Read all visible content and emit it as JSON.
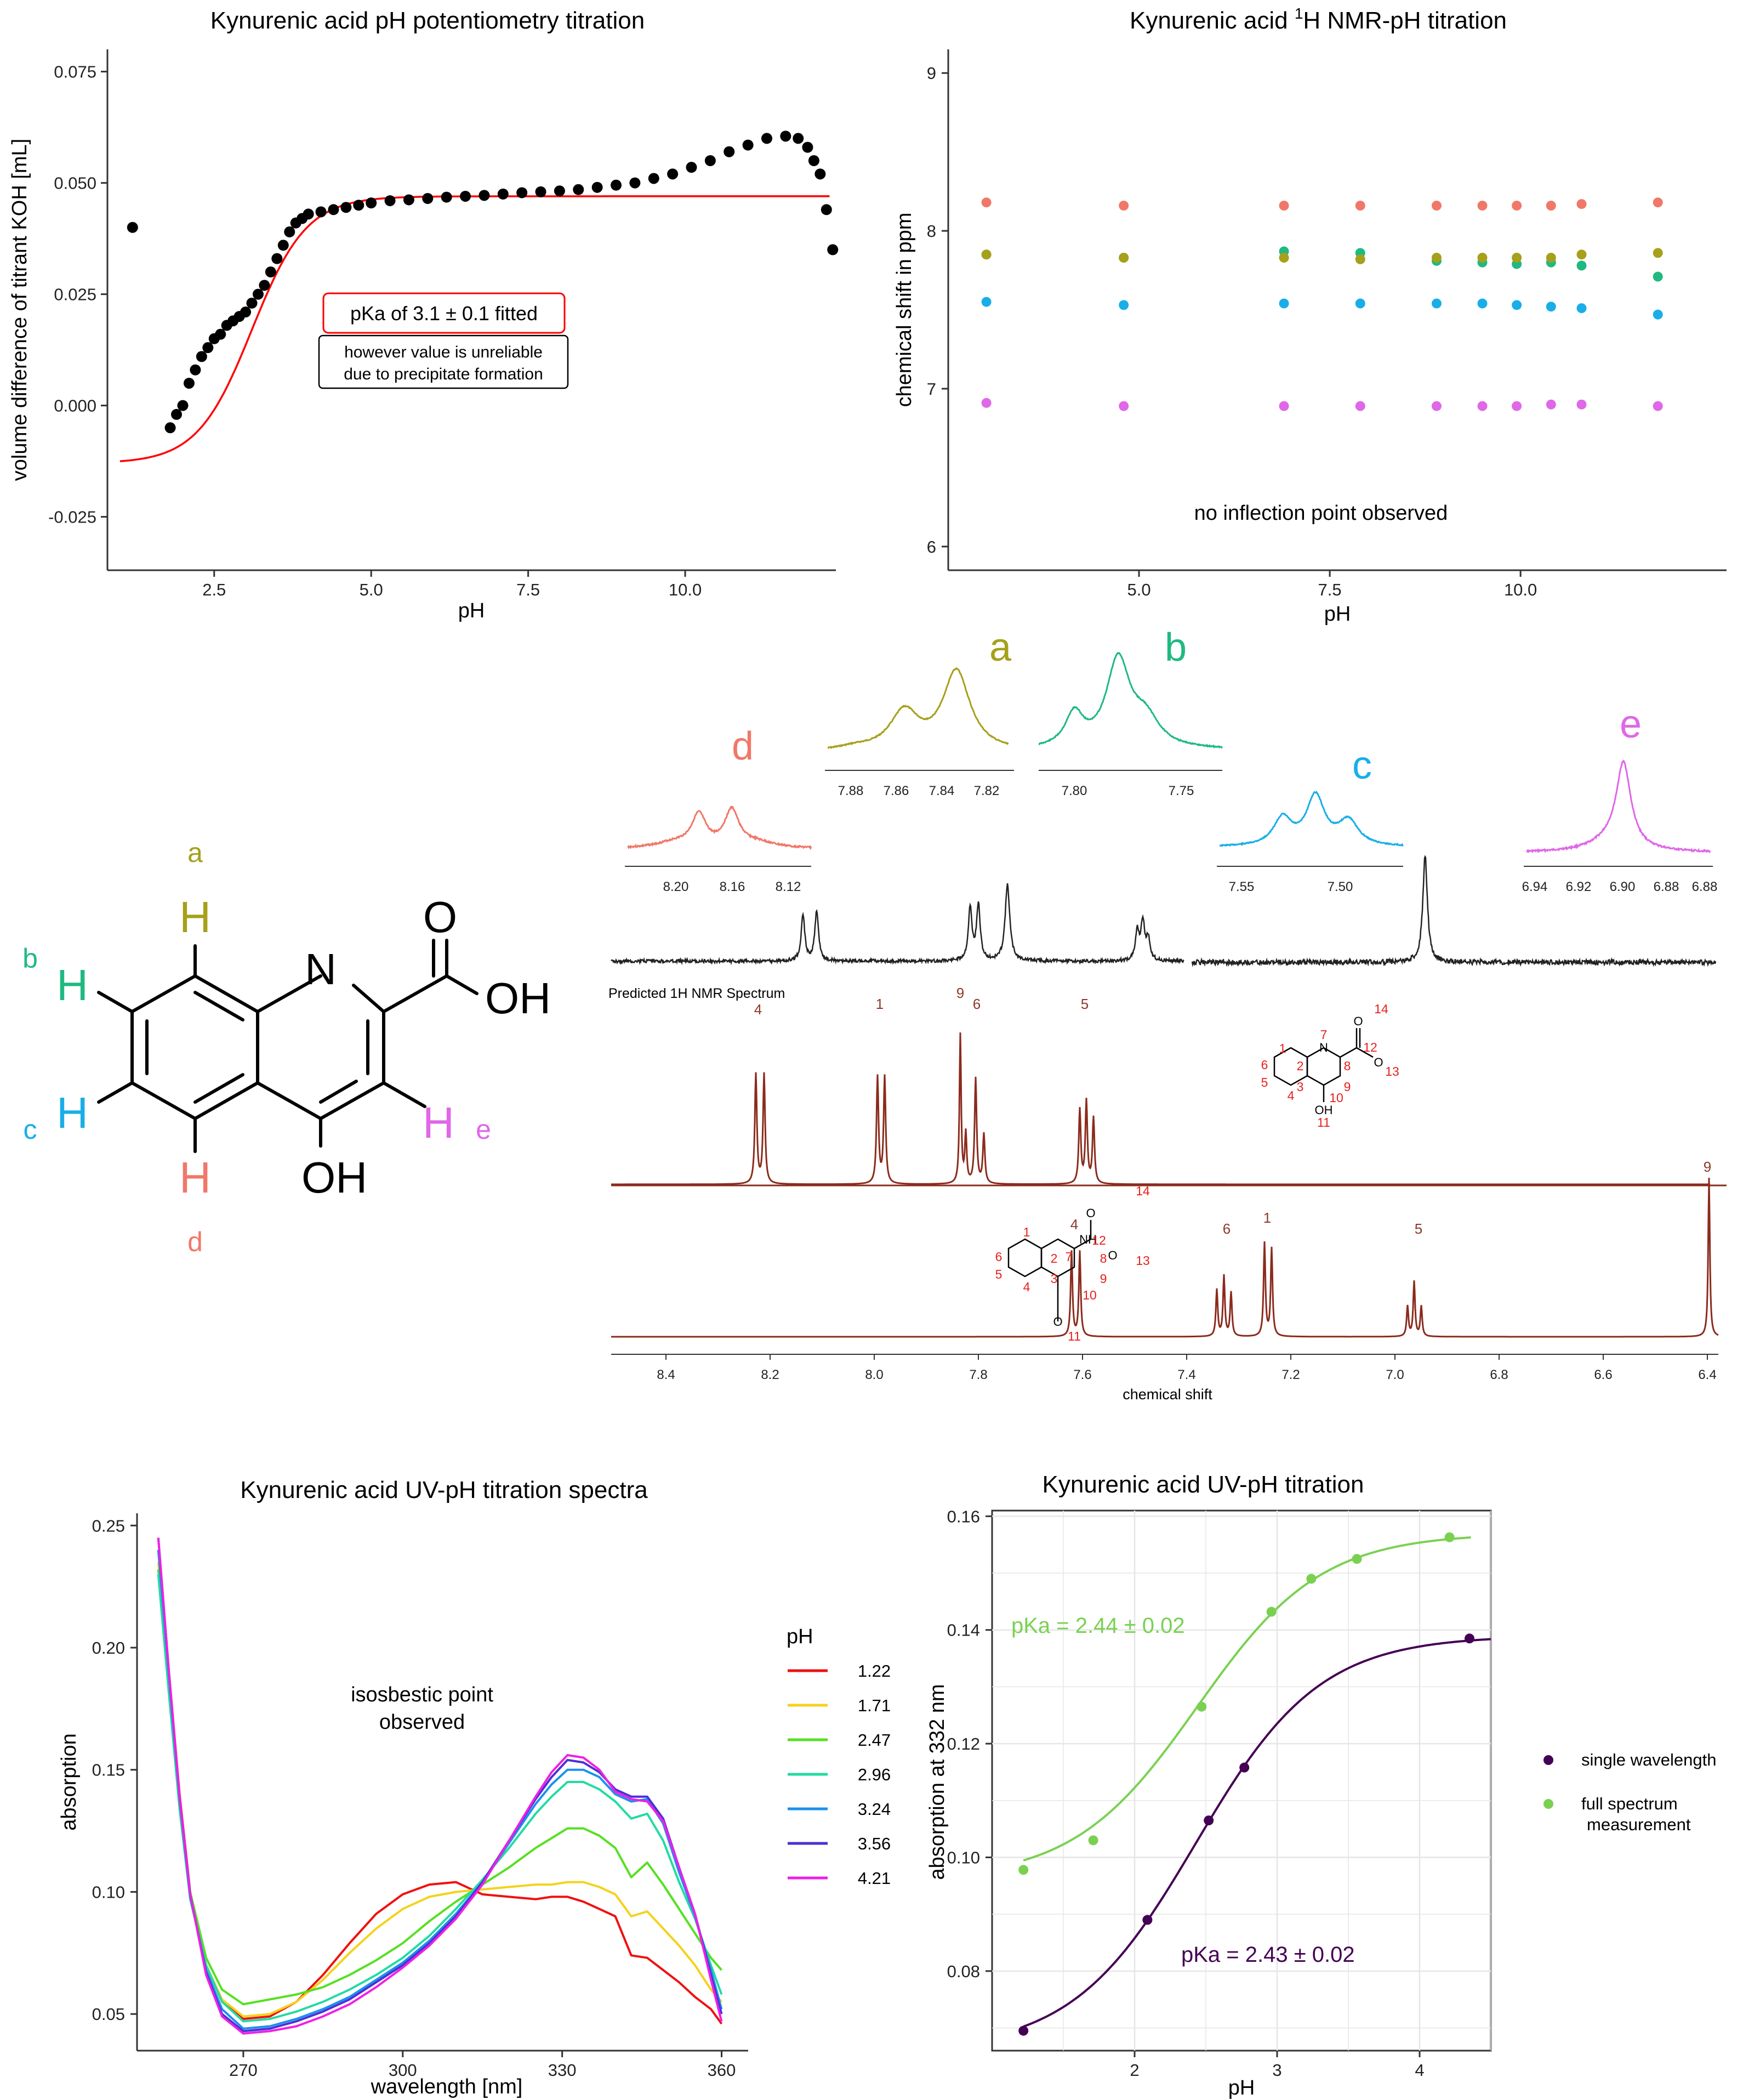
{
  "colors": {
    "a": "#a6a01a",
    "b": "#1fb981",
    "c": "#19aee8",
    "d": "#f07869",
    "e": "#e067e8",
    "fit_red": "#ff0000",
    "single": "#440154",
    "full": "#7ad151",
    "brown": "#8b2b1d"
  },
  "panels": {
    "potentiometry": {
      "chart_data": {
        "type": "scatter",
        "title": "Kynurenic acid pH potentiometry titration",
        "xlabel": "pH",
        "ylabel": "volume difference of titrant KOH [mL]",
        "xlim": [
          0.8,
          12.4
        ],
        "ylim": [
          -0.037,
          0.08
        ],
        "x_ticks": [
          "2.5",
          "5.0",
          "7.5",
          "10.0"
        ],
        "y_ticks": [
          "-0.025",
          "0.000",
          "0.025",
          "0.050",
          "0.075"
        ],
        "points": [
          [
            1.2,
            0.04
          ],
          [
            1.8,
            -0.005
          ],
          [
            1.9,
            -0.002
          ],
          [
            2.0,
            0.0
          ],
          [
            2.1,
            0.005
          ],
          [
            2.2,
            0.008
          ],
          [
            2.3,
            0.011
          ],
          [
            2.4,
            0.013
          ],
          [
            2.5,
            0.015
          ],
          [
            2.6,
            0.016
          ],
          [
            2.7,
            0.018
          ],
          [
            2.8,
            0.019
          ],
          [
            2.9,
            0.02
          ],
          [
            3.0,
            0.021
          ],
          [
            3.1,
            0.023
          ],
          [
            3.2,
            0.025
          ],
          [
            3.3,
            0.027
          ],
          [
            3.4,
            0.03
          ],
          [
            3.5,
            0.033
          ],
          [
            3.6,
            0.036
          ],
          [
            3.7,
            0.039
          ],
          [
            3.8,
            0.041
          ],
          [
            3.9,
            0.042
          ],
          [
            4.0,
            0.043
          ],
          [
            4.2,
            0.0435
          ],
          [
            4.4,
            0.044
          ],
          [
            4.6,
            0.0445
          ],
          [
            4.8,
            0.045
          ],
          [
            5.0,
            0.0455
          ],
          [
            5.3,
            0.046
          ],
          [
            5.6,
            0.0462
          ],
          [
            5.9,
            0.0465
          ],
          [
            6.2,
            0.0468
          ],
          [
            6.5,
            0.047
          ],
          [
            6.8,
            0.0472
          ],
          [
            7.1,
            0.0475
          ],
          [
            7.4,
            0.0478
          ],
          [
            7.7,
            0.048
          ],
          [
            8.0,
            0.0482
          ],
          [
            8.3,
            0.0485
          ],
          [
            8.6,
            0.049
          ],
          [
            8.9,
            0.0495
          ],
          [
            9.2,
            0.05
          ],
          [
            9.5,
            0.051
          ],
          [
            9.8,
            0.052
          ],
          [
            10.1,
            0.0535
          ],
          [
            10.4,
            0.055
          ],
          [
            10.7,
            0.057
          ],
          [
            11.0,
            0.0585
          ],
          [
            11.3,
            0.06
          ],
          [
            11.6,
            0.0605
          ],
          [
            11.8,
            0.06
          ],
          [
            11.95,
            0.058
          ],
          [
            12.05,
            0.055
          ],
          [
            12.15,
            0.052
          ],
          [
            12.25,
            0.044
          ],
          [
            12.35,
            0.035
          ]
        ],
        "fit": {
          "model": "sigmoid",
          "pKa": 3.1,
          "bottom": -0.013,
          "top": 0.047,
          "x_range": [
            1.0,
            12.3
          ]
        },
        "annotation_main": "pKa of 3.1 ± 0.1 fitted",
        "annotation_sub1": "however value is unreliable",
        "annotation_sub2": "due to precipitate formation"
      }
    },
    "nmr_titration": {
      "chart_data": {
        "type": "scatter",
        "title_prefix": "Kynurenic acid ",
        "title_sup": "1",
        "title_suffix": "H NMR-pH titration",
        "xlabel": "pH",
        "ylabel": "chemical shift in ppm",
        "xlim": [
          2.5,
          12.7
        ],
        "ylim": [
          5.85,
          9.15
        ],
        "x_ticks": [
          "5.0",
          "7.5",
          "10.0"
        ],
        "y_ticks": [
          "6",
          "7",
          "8",
          "9"
        ],
        "x": [
          3.0,
          4.8,
          6.9,
          7.9,
          8.9,
          9.5,
          9.95,
          10.4,
          10.8,
          11.8
        ],
        "series": [
          {
            "name": "d",
            "values": [
              8.18,
              8.16,
              8.16,
              8.16,
              8.16,
              8.16,
              8.16,
              8.16,
              8.17,
              8.18
            ]
          },
          {
            "name": "b",
            "values": [
              7.85,
              7.83,
              7.87,
              7.86,
              7.81,
              7.8,
              7.79,
              7.8,
              7.78,
              7.71
            ]
          },
          {
            "name": "a",
            "values": [
              7.85,
              7.83,
              7.83,
              7.82,
              7.83,
              7.83,
              7.83,
              7.83,
              7.85,
              7.86
            ]
          },
          {
            "name": "c",
            "values": [
              7.55,
              7.53,
              7.54,
              7.54,
              7.54,
              7.54,
              7.53,
              7.52,
              7.51,
              7.47
            ]
          },
          {
            "name": "e",
            "values": [
              6.91,
              6.89,
              6.89,
              6.89,
              6.89,
              6.89,
              6.89,
              6.9,
              6.9,
              6.89
            ]
          }
        ],
        "annotation": "no inflection point observed"
      }
    },
    "structure": {
      "labels": {
        "a": "a",
        "b": "b",
        "c": "c",
        "d": "d",
        "e": "e"
      },
      "atoms": {
        "H": "H",
        "N": "N",
        "O": "O",
        "OH": "OH"
      }
    },
    "spectrum": {
      "peaks": {
        "d": {
          "label": "d",
          "ticks": [
            "8.20",
            "8.16",
            "8.12"
          ]
        },
        "a": {
          "label": "a",
          "ticks": [
            "7.88",
            "7.86",
            "7.84",
            "7.82"
          ]
        },
        "b": {
          "label": "b",
          "ticks": [
            "7.80",
            "7.75"
          ]
        },
        "c": {
          "label": "c",
          "ticks": [
            "7.55",
            "7.50"
          ]
        },
        "e": {
          "label": "e",
          "ticks": [
            "6.94",
            "6.92",
            "6.90",
            "6.88"
          ]
        }
      },
      "predicted_label": "Predicted 1H NMR Spectrum",
      "predicted1_peak_labels": [
        "4",
        "1",
        "9",
        "6",
        "5",
        "9"
      ],
      "predicted2_peak_labels": [
        "4",
        "6",
        "1",
        "5"
      ],
      "x_ticks": [
        "8.4",
        "8.2",
        "8.0",
        "7.8",
        "7.6",
        "7.4",
        "7.2",
        "7.0",
        "6.8",
        "6.6",
        "6.4"
      ],
      "xlabel": "chemical shift",
      "struct1_numbers": [
        "1",
        "2",
        "3",
        "4",
        "5",
        "6",
        "7",
        "8",
        "9",
        "10",
        "11",
        "12",
        "13",
        "14"
      ],
      "struct1_atoms": {
        "N": "N",
        "O": "O",
        "OH": "OH",
        "Ominus": "O"
      },
      "struct2_atoms": {
        "NH": "NH",
        "O": "O"
      }
    },
    "uv_spectra": {
      "chart_data": {
        "type": "line",
        "title": "Kynurenic acid UV-pH titration spectra",
        "xlabel": "wavelength [nm]",
        "ylabel": "absorption",
        "xlim": [
          250,
          365
        ],
        "ylim": [
          0.035,
          0.255
        ],
        "x_ticks": [
          "270",
          "300",
          "330",
          "360"
        ],
        "y_ticks": [
          "0.05",
          "0.10",
          "0.15",
          "0.20",
          "0.25"
        ],
        "legend_title": "pH",
        "annotation_line1": "isosbestic point",
        "annotation_line2": "observed",
        "x": [
          254,
          256,
          258,
          260,
          263,
          266,
          270,
          275,
          280,
          285,
          290,
          295,
          300,
          305,
          310,
          315,
          320,
          325,
          328,
          331,
          334,
          337,
          340,
          343,
          346,
          349,
          352,
          355,
          358,
          360
        ],
        "series": [
          {
            "name": "1.22",
            "color": "#f01010",
            "values": [
              0.24,
              0.19,
              0.14,
              0.1,
              0.07,
              0.055,
              0.048,
              0.049,
              0.055,
              0.066,
              0.079,
              0.091,
              0.099,
              0.103,
              0.104,
              0.099,
              0.098,
              0.097,
              0.098,
              0.098,
              0.096,
              0.093,
              0.09,
              0.074,
              0.073,
              0.068,
              0.063,
              0.057,
              0.052,
              0.046
            ]
          },
          {
            "name": "1.71",
            "color": "#f5d21c",
            "values": [
              0.235,
              0.185,
              0.137,
              0.099,
              0.07,
              0.056,
              0.049,
              0.05,
              0.055,
              0.064,
              0.075,
              0.085,
              0.093,
              0.098,
              0.1,
              0.101,
              0.102,
              0.103,
              0.103,
              0.104,
              0.104,
              0.102,
              0.099,
              0.09,
              0.092,
              0.085,
              0.078,
              0.07,
              0.06,
              0.055
            ]
          },
          {
            "name": "2.47",
            "color": "#55e022",
            "values": [
              0.232,
              0.183,
              0.136,
              0.1,
              0.073,
              0.06,
              0.054,
              0.056,
              0.058,
              0.061,
              0.066,
              0.072,
              0.079,
              0.088,
              0.096,
              0.103,
              0.11,
              0.118,
              0.122,
              0.126,
              0.126,
              0.123,
              0.118,
              0.106,
              0.112,
              0.103,
              0.093,
              0.083,
              0.073,
              0.068
            ]
          },
          {
            "name": "2.96",
            "color": "#22dba2",
            "values": [
              0.23,
              0.181,
              0.134,
              0.097,
              0.07,
              0.055,
              0.047,
              0.048,
              0.051,
              0.055,
              0.06,
              0.066,
              0.073,
              0.082,
              0.093,
              0.105,
              0.118,
              0.132,
              0.139,
              0.145,
              0.145,
              0.142,
              0.137,
              0.13,
              0.132,
              0.121,
              0.104,
              0.089,
              0.07,
              0.058
            ]
          },
          {
            "name": "3.24",
            "color": "#1a90f0",
            "values": [
              0.24,
              0.188,
              0.138,
              0.098,
              0.068,
              0.052,
              0.044,
              0.045,
              0.048,
              0.052,
              0.057,
              0.064,
              0.071,
              0.08,
              0.091,
              0.104,
              0.12,
              0.136,
              0.144,
              0.15,
              0.15,
              0.147,
              0.14,
              0.137,
              0.138,
              0.128,
              0.108,
              0.09,
              0.068,
              0.052
            ]
          },
          {
            "name": "3.56",
            "color": "#4d2fd6",
            "values": [
              0.245,
              0.19,
              0.139,
              0.099,
              0.067,
              0.05,
              0.043,
              0.044,
              0.047,
              0.051,
              0.056,
              0.063,
              0.07,
              0.079,
              0.09,
              0.104,
              0.121,
              0.138,
              0.147,
              0.154,
              0.153,
              0.149,
              0.142,
              0.139,
              0.139,
              0.13,
              0.11,
              0.091,
              0.066,
              0.05
            ]
          },
          {
            "name": "4.21",
            "color": "#ee20e4",
            "values": [
              0.245,
              0.19,
              0.139,
              0.099,
              0.066,
              0.049,
              0.042,
              0.043,
              0.045,
              0.049,
              0.054,
              0.061,
              0.069,
              0.078,
              0.089,
              0.103,
              0.121,
              0.139,
              0.149,
              0.156,
              0.155,
              0.15,
              0.141,
              0.138,
              0.137,
              0.129,
              0.11,
              0.091,
              0.064,
              0.047
            ]
          }
        ]
      }
    },
    "uv_titration": {
      "chart_data": {
        "type": "scatter",
        "title": "Kynurenic acid UV-pH titration",
        "xlabel": "pH",
        "ylabel": "absorption at 332 nm",
        "xlim": [
          1.0,
          4.5
        ],
        "ylim": [
          0.066,
          0.161
        ],
        "x_ticks": [
          "2",
          "3",
          "4"
        ],
        "y_ticks": [
          "0.08",
          "0.10",
          "0.12",
          "0.14",
          "0.16"
        ],
        "series": [
          {
            "name": "single wavelength",
            "pKa_text": "pKa = 2.43 ± 0.02",
            "pKa": 2.43,
            "bottom": 0.066,
            "top": 0.139,
            "x": [
              1.22,
              2.09,
              2.52,
              2.77,
              4.35
            ],
            "values": [
              0.0695,
              0.089,
              0.1065,
              0.1158,
              0.1385
            ]
          },
          {
            "name": "full spectrum",
            "name_line2": "measurement",
            "pKa_text": "pKa = 2.44 ± 0.02",
            "pKa": 2.44,
            "bottom": 0.096,
            "top": 0.157,
            "x": [
              1.22,
              1.71,
              2.47,
              2.96,
              3.24,
              3.56,
              4.21
            ],
            "values": [
              0.0978,
              0.103,
              0.1265,
              0.1432,
              0.149,
              0.1525,
              0.1563
            ]
          }
        ]
      }
    }
  }
}
